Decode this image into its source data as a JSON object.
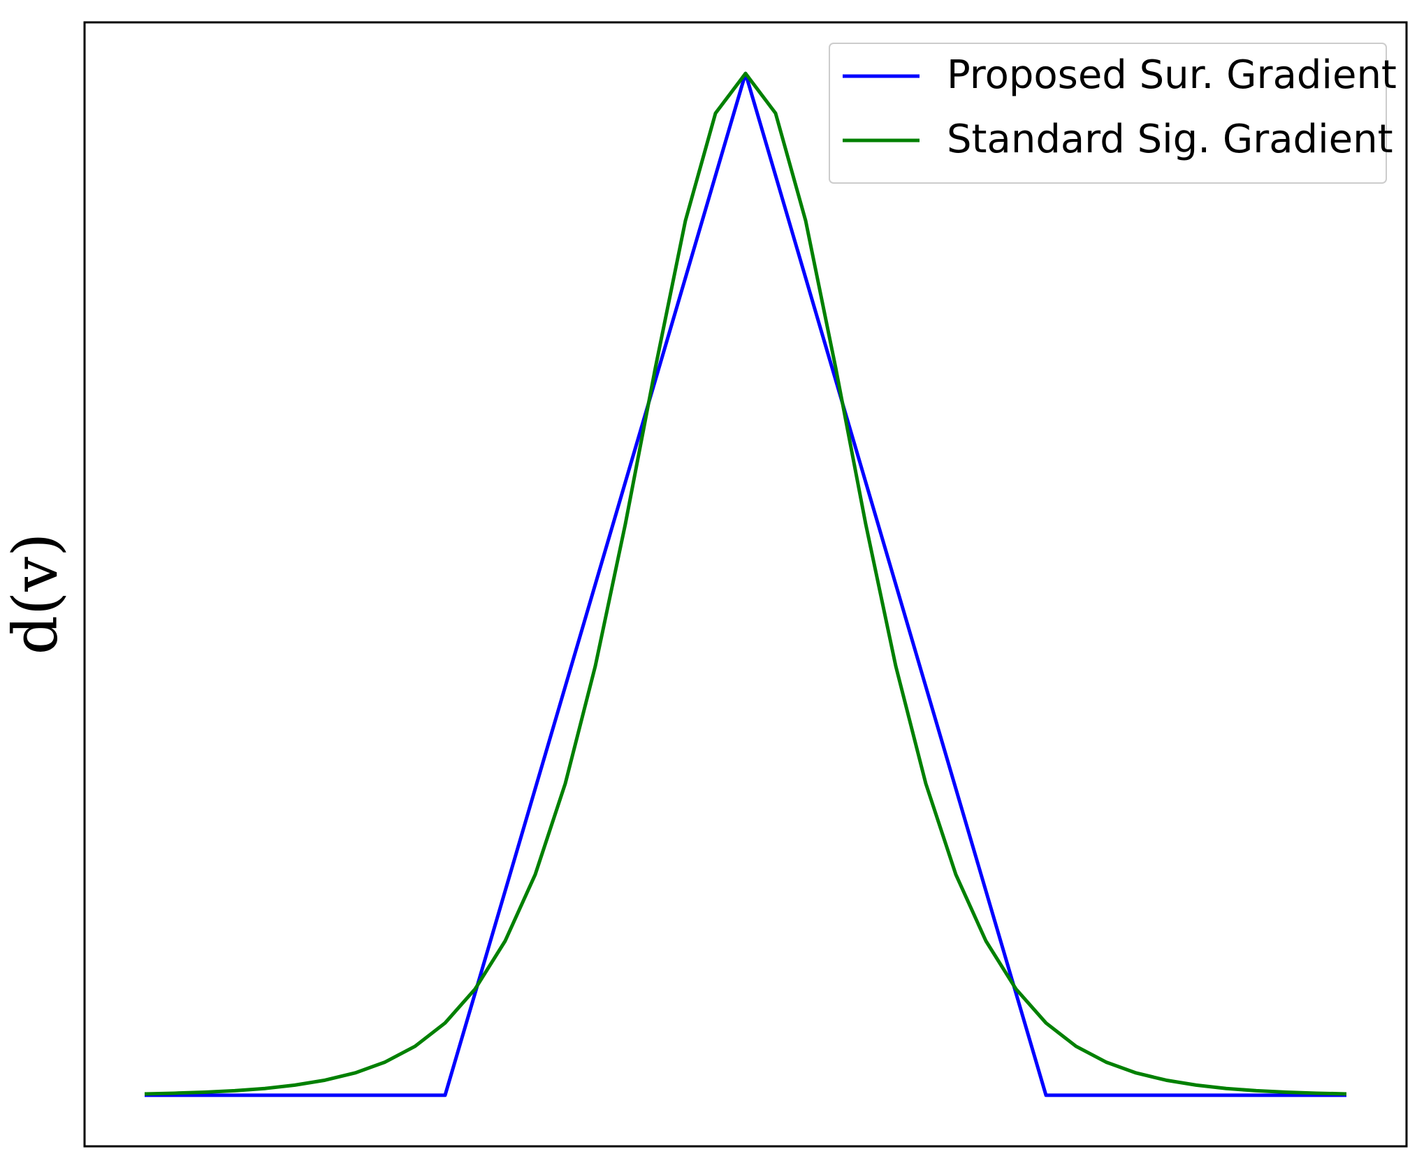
{
  "chart_data": {
    "type": "line",
    "y_label": "d(v)",
    "xlim": [
      -4.4,
      4.4
    ],
    "ylim": [
      -0.05,
      1.05
    ],
    "grid": false,
    "legend": "upper right",
    "series": [
      {
        "name": "Proposed Sur. Gradient",
        "color": "#0000ff",
        "x": [
          -4,
          -2,
          0,
          2,
          4
        ],
        "values": [
          0,
          0,
          1,
          0,
          0
        ]
      },
      {
        "name": "Standard Sig. Gradient",
        "color": "#008000",
        "x": [
          -4,
          -3.8,
          -3.6,
          -3.4,
          -3.2,
          -3,
          -2.8,
          -2.6,
          -2.4,
          -2.2,
          -2,
          -1.8,
          -1.6,
          -1.4,
          -1.2,
          -1,
          -0.8,
          -0.6,
          -0.4,
          -0.2,
          0,
          0.2,
          0.4,
          0.6,
          0.8,
          1,
          1.2,
          1.4,
          1.6,
          1.8,
          2,
          2.2,
          2.4,
          2.6,
          2.8,
          3,
          3.2,
          3.4,
          3.6,
          3.8,
          4
        ],
        "values": [
          0.0013,
          0.002,
          0.003,
          0.0044,
          0.0066,
          0.0099,
          0.0147,
          0.0218,
          0.0324,
          0.0479,
          0.0707,
          0.104,
          0.151,
          0.216,
          0.305,
          0.42,
          0.559,
          0.712,
          0.856,
          0.961,
          1,
          0.961,
          0.856,
          0.712,
          0.559,
          0.42,
          0.305,
          0.216,
          0.151,
          0.104,
          0.0707,
          0.0479,
          0.0324,
          0.0218,
          0.0147,
          0.0099,
          0.0066,
          0.0044,
          0.003,
          0.002,
          0.0013
        ]
      }
    ]
  }
}
